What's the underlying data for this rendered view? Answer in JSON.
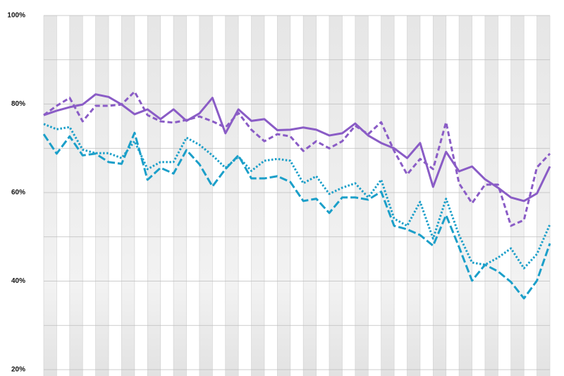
{
  "chart_data": {
    "type": "line",
    "categories": [
      null,
      null,
      null,
      null,
      null,
      null,
      null,
      null,
      null,
      null,
      null,
      null,
      null,
      null,
      null,
      null,
      null,
      null,
      null,
      null,
      null,
      null,
      null,
      null,
      null,
      null,
      null,
      null,
      null,
      null,
      null,
      null,
      null,
      null,
      null,
      null,
      null,
      null,
      null,
      null
    ],
    "series": [
      {
        "color": "#8a5cc6",
        "dash": "solid",
        "values": [
          77.5,
          78.5,
          79.3,
          79.9,
          82.2,
          81.6,
          79.9,
          77.7,
          78.8,
          76.6,
          78.8,
          76.2,
          77.9,
          81.4,
          73.4,
          78.8,
          76.2,
          76.6,
          74.1,
          74.2,
          74.7,
          74.2,
          72.9,
          73.4,
          75.6,
          72.9,
          71.2,
          70.0,
          67.8,
          71.2,
          61.3,
          69.2,
          64.8,
          65.9,
          63.0,
          61.1,
          58.9,
          58.1,
          59.8,
          65.9
        ]
      },
      {
        "color": "#8a5cc6",
        "dash": "dash",
        "values": [
          77.5,
          79.6,
          81.4,
          76.1,
          79.6,
          79.6,
          79.9,
          82.8,
          77.5,
          76.1,
          75.8,
          76.4,
          77.2,
          76.1,
          74.7,
          78.0,
          74.2,
          71.6,
          73.2,
          72.7,
          69.4,
          71.6,
          70.0,
          71.6,
          75.1,
          73.2,
          75.9,
          69.4,
          64.1,
          67.6,
          65.3,
          75.9,
          62.1,
          57.6,
          61.8,
          61.8,
          52.5,
          53.8,
          65.7,
          68.8
        ]
      },
      {
        "color": "#1b9fc9",
        "dash": "dot",
        "values": [
          75.5,
          74.3,
          74.8,
          69.7,
          68.9,
          68.9,
          67.8,
          71.6,
          65.3,
          66.9,
          66.9,
          72.4,
          70.8,
          68.4,
          65.6,
          68.1,
          64.9,
          67.2,
          67.6,
          67.2,
          62.1,
          63.7,
          59.7,
          61.1,
          62.1,
          58.9,
          62.9,
          54.1,
          52.5,
          57.9,
          49.6,
          58.6,
          50.4,
          44.2,
          43.7,
          45.3,
          47.4,
          42.9,
          46.1,
          52.8
        ]
      },
      {
        "color": "#1b9fc9",
        "dash": "longdash",
        "values": [
          73.2,
          68.8,
          72.7,
          68.4,
          68.8,
          66.9,
          66.5,
          73.5,
          62.9,
          65.6,
          64.3,
          69.6,
          66.4,
          61.4,
          65.3,
          68.4,
          63.2,
          63.2,
          63.7,
          62.4,
          58.1,
          58.6,
          55.4,
          58.9,
          58.9,
          58.4,
          60.2,
          52.5,
          51.7,
          50.4,
          48.0,
          54.9,
          47.7,
          40.1,
          43.7,
          42.2,
          39.8,
          36.1,
          40.1,
          48.5
        ]
      }
    ],
    "ylim": [
      20,
      100
    ],
    "yticks": [
      {
        "value": 20,
        "label": "20%"
      },
      {
        "value": 40,
        "label": "40%"
      },
      {
        "value": 60,
        "label": "60%"
      },
      {
        "value": 80,
        "label": "80%"
      },
      {
        "value": 100,
        "label": "100%"
      }
    ],
    "minor_yticks": [
      30,
      50,
      70,
      90
    ],
    "grid": true
  }
}
